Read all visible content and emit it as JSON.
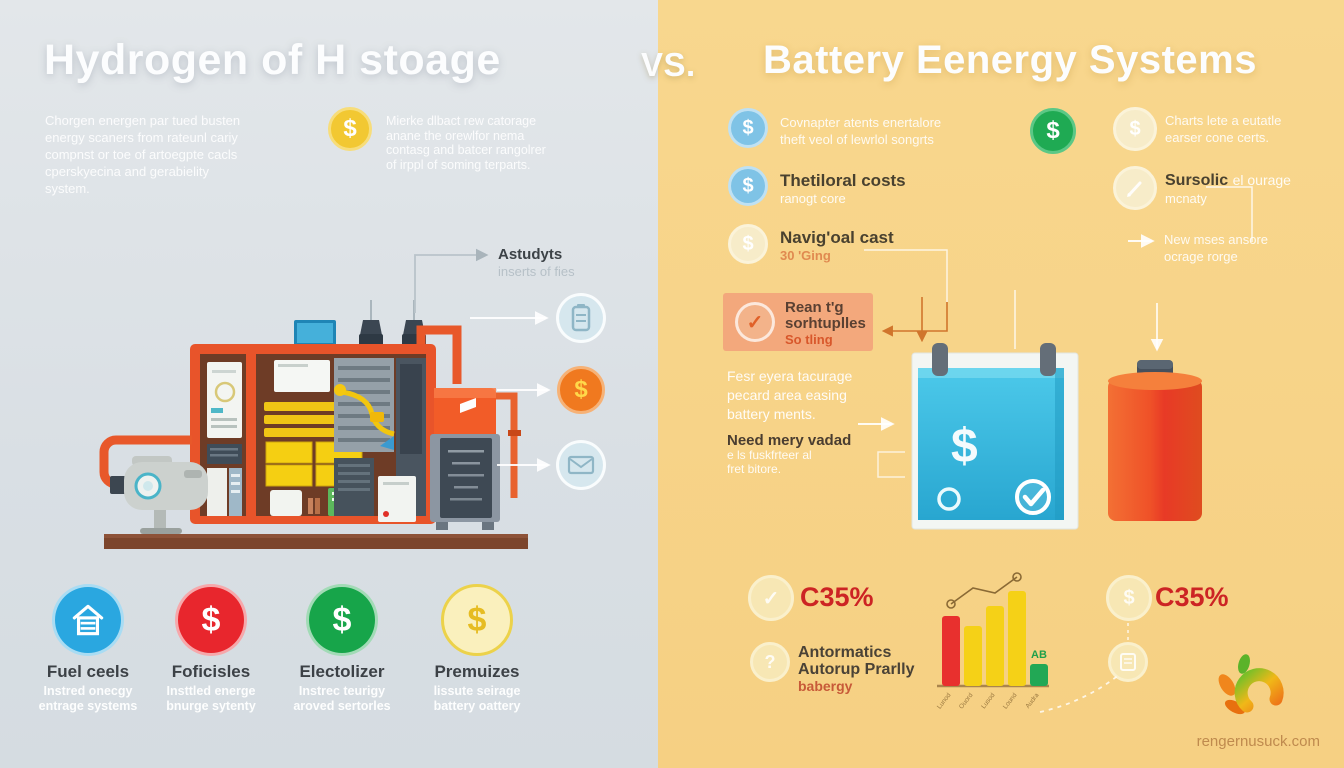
{
  "meta": {
    "title_left": "Hydrogen of H stoage",
    "vs_label": "VS.",
    "title_right": "Battery Eenergy Systems",
    "watermark": "rengernusuck.com",
    "colors": {
      "left_bg": "#dde3e7",
      "right_bg": "#f7d388",
      "accent_orange": "#e85c28",
      "accent_red": "#d42b2b",
      "accent_green": "#1faa53",
      "accent_blue": "#7fc3e6",
      "accent_yellow": "#f2c832",
      "tank_cyan": "#35b8dc"
    }
  },
  "icons": {
    "dollar": "$",
    "question": "?",
    "check": "✓"
  },
  "left": {
    "intro_lines": [
      "Chorgen energen par tued busten",
      "energy scaners from rateunl cariy",
      "compnst or toe of artoegpte cacls",
      "cperskyecina and gerabielity",
      "system."
    ],
    "money_note_lines": [
      "Mierke dlbact rew catorage",
      "anane the orewlfor nema",
      "contasg and batcer rangolrer",
      "of irppl of soming terparts."
    ],
    "machine_label": {
      "title": "Astudyts",
      "subtitle": "inserts of fies"
    },
    "legend": [
      {
        "label": "Fuel ceels",
        "sub1": "Instred onecgy",
        "sub2": "entrage systems"
      },
      {
        "label": "Foficisles",
        "sub1": "Insttled energe",
        "sub2": "bnurge sytenty"
      },
      {
        "label": "Electolizer",
        "sub1": "Instrec teurigy",
        "sub2": "aroved sertorles"
      },
      {
        "label": "Premuizes",
        "sub1": "lissute seirage",
        "sub2": "battery oattery"
      }
    ]
  },
  "right": {
    "item1": {
      "line1": "Covnapter atents enertalore",
      "line2": "theft veol of lewrlol songrts"
    },
    "item2": {
      "title": "Thetiloral costs",
      "sub": "ranogt core"
    },
    "item3": {
      "title": "Navig'oal cast",
      "sub": "30 'Ging"
    },
    "item4": {
      "line1": "Rean t'g",
      "line2": "sorhtuplles",
      "sub": "So tling"
    },
    "item5_lines": [
      "Fesr eyera tacurage",
      "pecard area easing",
      "battery ments."
    ],
    "item6": {
      "title": "Need mery vadad",
      "ghost1": "e ls fuskfrteer al",
      "ghost2": "fret bitore."
    },
    "top2": {
      "line1": "Charts lete a eutatle",
      "line2": "earser cone certs."
    },
    "top3": {
      "title": "Sursolic",
      "after": "el ourage",
      "sub": "mcnaty"
    },
    "top4": {
      "line1": "New mses ansore",
      "line2": "ocrage rorge"
    },
    "stat1": {
      "value": "C35%"
    },
    "stat2": {
      "line1": "Antormatics",
      "line2": "Autorup Prarlly",
      "line3": "babergy"
    },
    "stat3": {
      "value": "C35%"
    }
  },
  "chart_data": {
    "type": "bar",
    "title": "",
    "xlabel": "",
    "ylabel": "",
    "categories": [
      "Lunod",
      "Ouord",
      "Lusod",
      "Lound",
      "Audra"
    ],
    "values": [
      70,
      60,
      80,
      95,
      22
    ],
    "bar_colors": [
      "#e8302e",
      "#f5d117",
      "#f5d117",
      "#f5d117",
      "#22a855"
    ],
    "annotation": {
      "text": "AB",
      "bar_index": 4
    },
    "overlay_line": {
      "values": [
        82,
        98,
        93,
        109
      ],
      "marker_ends": true
    },
    "ylim": [
      0,
      110
    ],
    "grid": false,
    "legend": "none"
  }
}
